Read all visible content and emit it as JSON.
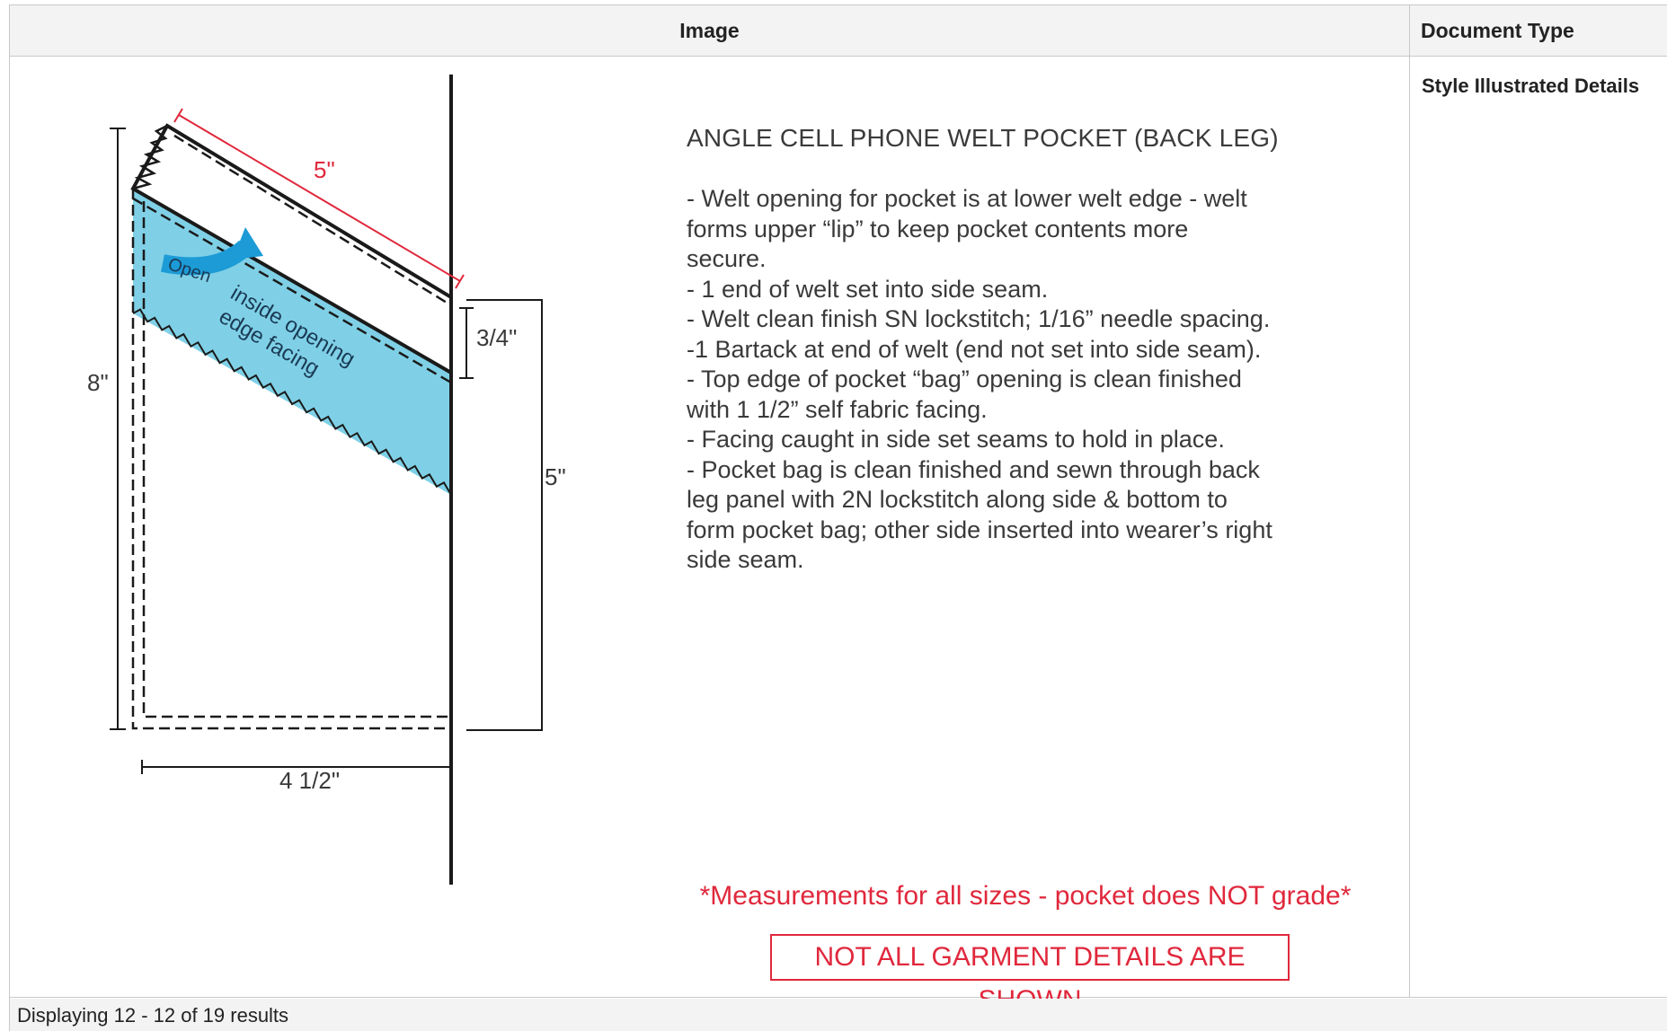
{
  "table": {
    "columns": [
      "Image",
      "Document Type"
    ],
    "row": {
      "document_type": "Style Illustrated Details"
    }
  },
  "drawing": {
    "dimension_labels": {
      "welt_length": "5\"",
      "height": "8\"",
      "welt_depth": "3/4\"",
      "side_length": "5\"",
      "width": "4 1/2\""
    },
    "open_label": "Open",
    "facing_label_line1": "inside opening",
    "facing_label_line2": "edge facing",
    "colors": {
      "facing_fill": "#7fd0e6",
      "arrow": "#1c9bd6",
      "dimension_red": "#e0283c",
      "welt_gray": "#a9a9a9"
    }
  },
  "spec": {
    "title": "ANGLE CELL PHONE WELT POCKET (BACK LEG)",
    "lines": [
      "- Welt opening for pocket is at lower welt edge - welt",
      "forms upper “lip” to keep pocket contents more",
      "secure.",
      "- 1 end of welt set into side seam.",
      "- Welt clean finish SN lockstitch; 1/16” needle spacing.",
      "-1 Bartack at end of welt (end not set into side seam).",
      "- Top edge of pocket “bag” opening is clean finished",
      "with 1 1/2” self fabric facing.",
      "- Facing caught in side set seams to hold in place.",
      "- Pocket bag is clean finished and sewn through back",
      "leg panel with 2N lockstitch along side & bottom to",
      "form pocket bag; other side inserted into wearer’s right",
      "side seam."
    ],
    "note": "*Measurements for all sizes - pocket does NOT grade*",
    "disclaimer": "NOT ALL GARMENT DETAILS ARE SHOWN"
  },
  "footer": {
    "pagination": "Displaying 12 - 12 of 19 results"
  }
}
